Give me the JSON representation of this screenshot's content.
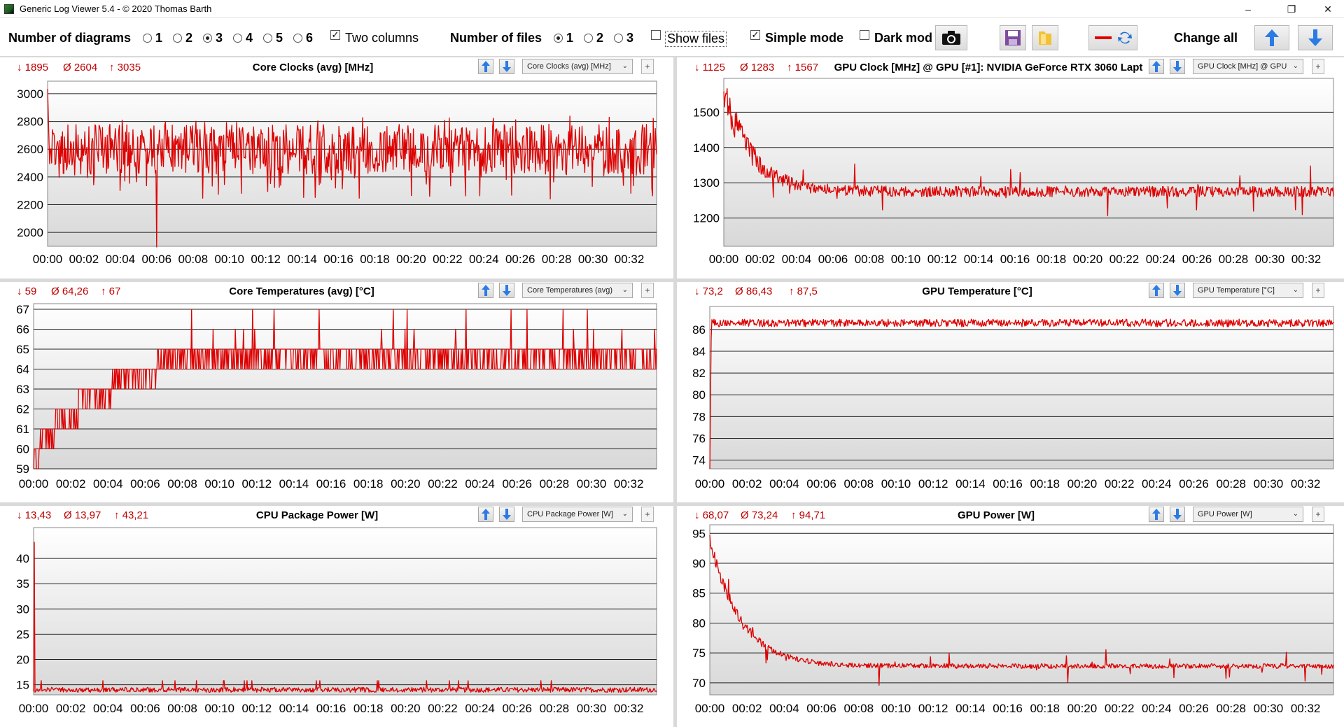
{
  "window": {
    "title": "Generic Log Viewer 5.4 - © 2020 Thomas Barth",
    "minimize": "–",
    "restore": "❐",
    "close": "✕"
  },
  "toolbar": {
    "num_diagrams_label": "Number of diagrams",
    "num_diagrams_options": [
      "1",
      "2",
      "3",
      "4",
      "5",
      "6"
    ],
    "num_diagrams_selected": "3",
    "two_columns_label": "Two columns",
    "two_columns_checked": true,
    "num_files_label": "Number of files",
    "num_files_options": [
      "1",
      "2",
      "3"
    ],
    "num_files_selected": "1",
    "show_files_label": "Show files",
    "show_files_checked": false,
    "simple_mode_label": "Simple mode",
    "simple_mode_checked": true,
    "dark_mode_label": "Dark mod",
    "dark_mode_checked": false,
    "change_all_label": "Change all",
    "icons": [
      "camera-icon",
      "save-icon",
      "folder-icon",
      "swap-color-icon",
      "arrow-up-icon",
      "arrow-down-icon"
    ]
  },
  "colors": {
    "series": "#dd0000",
    "stat_text": "#c00000",
    "grid": "#000000"
  },
  "panels": [
    {
      "id": "core-clocks",
      "title": "Core Clocks (avg) [MHz]",
      "min": "1895",
      "avg": "2604",
      "max": "3035",
      "dropdown": "Core Clocks (avg) [MHz]",
      "chart_data": {
        "type": "line",
        "ylim": [
          1900,
          3050
        ],
        "yticks": [
          2000,
          2200,
          2400,
          2600,
          2800,
          3000
        ],
        "xticks": [
          "00:00",
          "00:02",
          "00:04",
          "00:06",
          "00:08",
          "00:10",
          "00:12",
          "00:14",
          "00:16",
          "00:18",
          "00:20",
          "00:22",
          "00:24",
          "00:26",
          "00:28",
          "00:30",
          "00:32"
        ],
        "x_minutes_end": 33.5,
        "signal": {
          "base": 2600,
          "noise": 180,
          "min": 1895,
          "max": 3035,
          "startSpike": 3035,
          "dip": [
            6,
            1895
          ]
        }
      }
    },
    {
      "id": "gpu-clock",
      "title": "GPU Clock [MHz] @ GPU [#1]: NVIDIA GeForce RTX 3060 Lapt",
      "min": "1125",
      "avg": "1283",
      "max": "1567",
      "dropdown": "GPU Clock [MHz] @ GPU",
      "chart_data": {
        "type": "line",
        "ylim": [
          1120,
          1580
        ],
        "yticks": [
          1200,
          1300,
          1400,
          1500
        ],
        "xticks": [
          "00:00",
          "00:02",
          "00:04",
          "00:06",
          "00:08",
          "00:10",
          "00:12",
          "00:14",
          "00:16",
          "00:18",
          "00:20",
          "00:22",
          "00:24",
          "00:26",
          "00:28",
          "00:30",
          "00:32"
        ],
        "x_minutes_end": 33.5,
        "signal": {
          "base": 1275,
          "noise": 15,
          "startSpike": 1567,
          "decay": 1.5,
          "min": 1125,
          "max": 1567
        }
      }
    },
    {
      "id": "core-temps",
      "title": "Core Temperatures (avg) [°C]",
      "min": "59",
      "avg": "64,26",
      "max": "67",
      "dropdown": "Core Temperatures (avg)",
      "chart_data": {
        "type": "line",
        "ylim": [
          59,
          67
        ],
        "yticks": [
          59,
          60,
          61,
          62,
          63,
          64,
          65,
          66,
          67
        ],
        "xticks": [
          "00:00",
          "00:02",
          "00:04",
          "00:06",
          "00:08",
          "00:10",
          "00:12",
          "00:14",
          "00:16",
          "00:18",
          "00:20",
          "00:22",
          "00:24",
          "00:26",
          "00:28",
          "00:30",
          "00:32"
        ],
        "x_minutes_end": 33.5,
        "signal": {
          "base": 65,
          "start": 59,
          "ramp": 8,
          "min": 59,
          "max": 67
        }
      }
    },
    {
      "id": "gpu-temp",
      "title": "GPU Temperature [°C]",
      "min": "73,2",
      "avg": "86,43",
      "max": "87,5",
      "dropdown": "GPU Temperature [°C]",
      "chart_data": {
        "type": "line",
        "ylim": [
          73.2,
          87.6
        ],
        "yticks": [
          74,
          76,
          78,
          80,
          82,
          84,
          86
        ],
        "xticks": [
          "00:00",
          "00:02",
          "00:04",
          "00:06",
          "00:08",
          "00:10",
          "00:12",
          "00:14",
          "00:16",
          "00:18",
          "00:20",
          "00:22",
          "00:24",
          "00:26",
          "00:28",
          "00:30",
          "00:32"
        ],
        "x_minutes_end": 33.5,
        "signal": {
          "base": 86.6,
          "noise": 0.35,
          "start": 73.2,
          "min": 73.2,
          "max": 87.5
        }
      }
    },
    {
      "id": "cpu-power",
      "title": "CPU Package Power [W]",
      "min": "13,43",
      "avg": "13,97",
      "max": "43,21",
      "dropdown": "CPU Package Power [W]",
      "chart_data": {
        "type": "line",
        "ylim": [
          13,
          45
        ],
        "yticks": [
          15,
          20,
          25,
          30,
          35,
          40
        ],
        "xticks": [
          "00:00",
          "00:02",
          "00:04",
          "00:06",
          "00:08",
          "00:10",
          "00:12",
          "00:14",
          "00:16",
          "00:18",
          "00:20",
          "00:22",
          "00:24",
          "00:26",
          "00:28",
          "00:30",
          "00:32"
        ],
        "x_minutes_end": 33.5,
        "signal": {
          "base": 14.0,
          "noise": 0.5,
          "startSpike": 43.21,
          "min": 13.43,
          "max": 43.21
        }
      }
    },
    {
      "id": "gpu-power",
      "title": "GPU Power [W]",
      "min": "68,07",
      "avg": "73,24",
      "max": "94,71",
      "dropdown": "GPU Power [W]",
      "chart_data": {
        "type": "line",
        "ylim": [
          68,
          95.5
        ],
        "yticks": [
          70,
          75,
          80,
          85,
          90,
          95
        ],
        "xticks": [
          "00:00",
          "00:02",
          "00:04",
          "00:06",
          "00:08",
          "00:10",
          "00:12",
          "00:14",
          "00:16",
          "00:18",
          "00:20",
          "00:22",
          "00:24",
          "00:26",
          "00:28",
          "00:30",
          "00:32"
        ],
        "x_minutes_end": 33.5,
        "signal": {
          "base": 72.8,
          "noise": 0.4,
          "startSpike": 94.71,
          "decay": 1.6,
          "min": 68.07,
          "max": 94.71
        }
      }
    }
  ]
}
